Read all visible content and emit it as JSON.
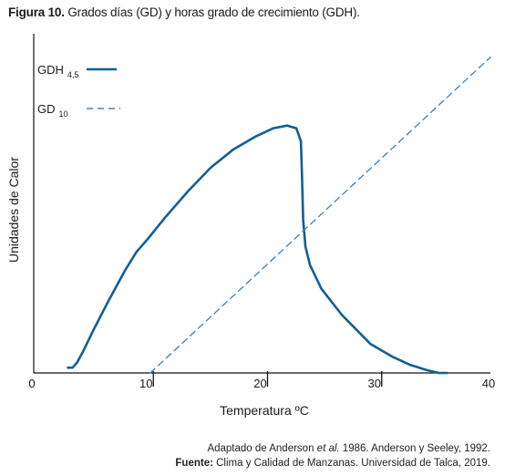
{
  "caption": {
    "label": "Figura 10.",
    "text": "Grados días (GD) y horas grado de crecimiento (GDH)."
  },
  "chart_data": {
    "type": "line",
    "xlabel": "Temperatura ºC",
    "ylabel": "Unidades de Calor",
    "xlim": [
      0,
      40
    ],
    "x_ticks": [
      "0",
      "10",
      "20",
      "30",
      "40"
    ],
    "y_ticks": [],
    "grid": false,
    "legend_position": "top-left",
    "colors": {
      "gdh": "#0f5f94",
      "gd": "#4a86b8"
    },
    "series": [
      {
        "name": "GDH",
        "subscript": "4,5",
        "style": "solid",
        "x": [
          3,
          3.4,
          3.8,
          4.3,
          5.2,
          6.5,
          8,
          9,
          10,
          11.5,
          13.5,
          15.5,
          17.5,
          19.5,
          21,
          22.2,
          23,
          23.4,
          23.5,
          23.6,
          23.8,
          24.2,
          25.2,
          27,
          29.5,
          31.5,
          33,
          34.5,
          35.5,
          36.2
        ],
        "y": [
          0.02,
          0.02,
          0.04,
          0.08,
          0.16,
          0.27,
          0.39,
          0.46,
          0.51,
          0.59,
          0.69,
          0.78,
          0.85,
          0.9,
          0.93,
          0.94,
          0.93,
          0.88,
          0.75,
          0.58,
          0.48,
          0.41,
          0.32,
          0.22,
          0.11,
          0.06,
          0.03,
          0.01,
          0.0,
          0.0
        ]
      },
      {
        "name": "GD",
        "subscript": "10",
        "style": "dashed",
        "x": [
          10.2,
          40
        ],
        "y": [
          0.0,
          1.2
        ]
      }
    ]
  },
  "source": {
    "line1_pre": "Adaptado de Anderson ",
    "line1_italic": "et al.",
    "line1_post": " 1986. Anderson y Seeley, 1992.",
    "line2_label": "Fuente:",
    "line2_text": " Clima y Calidad de Manzanas. Universidad de Talca, 2019."
  }
}
